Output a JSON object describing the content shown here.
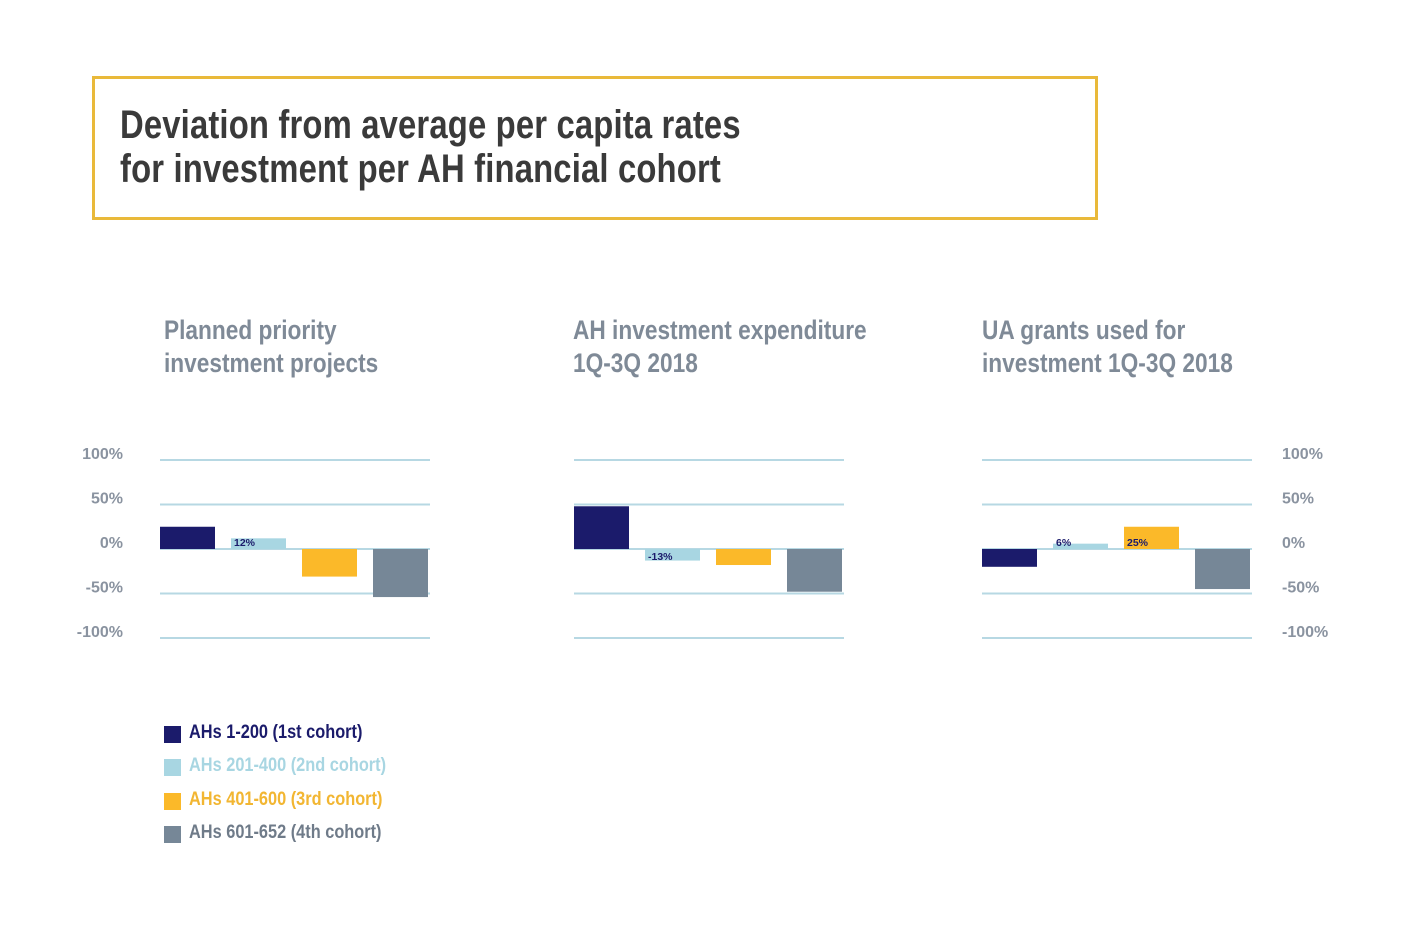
{
  "title": {
    "line1": "Deviation from average per capita rates",
    "line2": "for investment per AH financial cohort"
  },
  "colors": {
    "title_border": "#e9b93a",
    "gridline": "#b7d8e3",
    "cohort1": "#1b1b6b",
    "cohort2": "#a8d6e2",
    "cohort3": "#fbb929",
    "cohort4": "#768797",
    "tick": "#8a93a0"
  },
  "legend": [
    {
      "label": "AHs 1-200 (1st cohort)",
      "color": "#1b1b6b"
    },
    {
      "label": "AHs 201-400 (2nd cohort)",
      "color": "#a8d6e2"
    },
    {
      "label": "AHs 401-600 (3rd cohort)",
      "color": "#fbb929"
    },
    {
      "label": "AHs 601-652 (4th cohort)",
      "color": "#768797"
    }
  ],
  "chart_data": [
    {
      "type": "bar",
      "title_line1": "Planned priority",
      "title_line2": "investment projects",
      "categories": [
        "AHs 1-200 (1st cohort)",
        "AHs 201-400 (2nd cohort)",
        "AHs 401-600 (3rd cohort)",
        "AHs 601-652 (4th cohort)"
      ],
      "values": [
        25,
        12,
        -31,
        -54
      ],
      "data_labels": [
        "",
        "12%",
        "",
        ""
      ],
      "ylim": [
        -100,
        100
      ],
      "yticks": [
        "100%",
        "50%",
        "0%",
        "-50%",
        "-100%"
      ],
      "ytick_values": [
        100,
        50,
        0,
        -50,
        -100
      ],
      "tick_side": "left",
      "grid": true
    },
    {
      "type": "bar",
      "title_line1": "AH investment expenditure",
      "title_line2": "1Q-3Q 2018",
      "categories": [
        "AHs 1-200 (1st cohort)",
        "AHs 201-400 (2nd cohort)",
        "AHs 401-600 (3rd cohort)",
        "AHs 601-652 (4th cohort)"
      ],
      "values": [
        48,
        -13,
        -18,
        -48
      ],
      "data_labels": [
        "",
        "-13%",
        "",
        ""
      ],
      "ylim": [
        -100,
        100
      ],
      "ytick_values": [
        100,
        50,
        0,
        -50,
        -100
      ],
      "grid": true
    },
    {
      "type": "bar",
      "title_line1": "UA grants used for",
      "title_line2": "investment 1Q-3Q 2018",
      "categories": [
        "AHs 1-200 (1st cohort)",
        "AHs 201-400 (2nd cohort)",
        "AHs 401-600 (3rd cohort)",
        "AHs 601-652 (4th cohort)"
      ],
      "values": [
        -20,
        6,
        25,
        -45
      ],
      "data_labels": [
        "",
        "6%",
        "25%",
        ""
      ],
      "ylim": [
        -100,
        100
      ],
      "yticks": [
        "100%",
        "50%",
        "0%",
        "-50%",
        "-100%"
      ],
      "ytick_values": [
        100,
        50,
        0,
        -50,
        -100
      ],
      "tick_side": "right",
      "grid": true
    }
  ]
}
